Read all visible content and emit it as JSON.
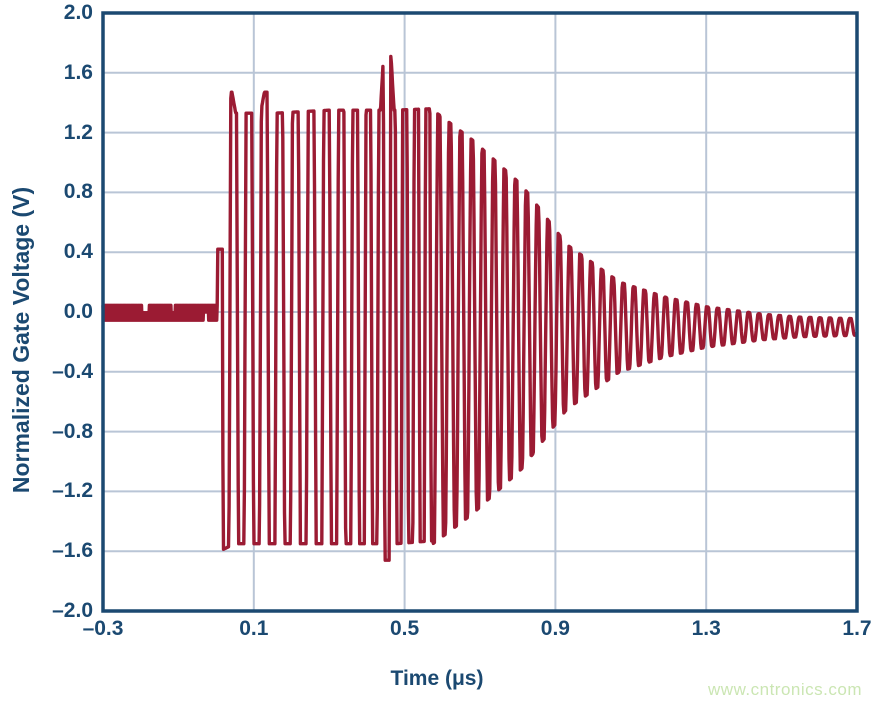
{
  "watermark": {
    "text": "www.cntronics.com",
    "color": "#cbe6b3"
  },
  "chart_data": {
    "type": "line",
    "title": "",
    "xlabel": "Time (μs)",
    "ylabel": "Normalized Gate Voltage (V)",
    "series_name": "normalized gate voltage waveform",
    "xlim": [
      -0.3,
      1.7
    ],
    "ylim": [
      -2.0,
      2.0
    ],
    "grid": true,
    "legend": false,
    "x_ticks": [
      {
        "value": -0.3,
        "label": "–0.3"
      },
      {
        "value": 0.1,
        "label": "0.1"
      },
      {
        "value": 0.5,
        "label": "0.5"
      },
      {
        "value": 0.9,
        "label": "0.9"
      },
      {
        "value": 1.3,
        "label": "1.3"
      },
      {
        "value": 1.7,
        "label": "1.7"
      }
    ],
    "y_ticks": [
      {
        "value": 2.0,
        "label": "2.0"
      },
      {
        "value": 1.6,
        "label": "1.6"
      },
      {
        "value": 1.2,
        "label": "1.2"
      },
      {
        "value": 0.8,
        "label": "0.8"
      },
      {
        "value": 0.4,
        "label": "0.4"
      },
      {
        "value": 0.0,
        "label": "0.0"
      },
      {
        "value": -0.4,
        "label": "–0.4"
      },
      {
        "value": -0.8,
        "label": "–0.8"
      },
      {
        "value": -1.2,
        "label": "–1.2"
      },
      {
        "value": -1.6,
        "label": "–1.6"
      },
      {
        "value": -2.0,
        "label": "–2.0"
      }
    ],
    "x_gridlines": [
      0.1,
      0.5,
      0.9,
      1.3
    ],
    "y_gridlines": [
      1.6,
      1.2,
      0.8,
      0.4,
      0.0,
      -0.4,
      -0.8,
      -1.2,
      -1.6
    ],
    "colors": {
      "trace": "#9b1b33",
      "axis": "#1b4971",
      "grid": "#b9c5d6",
      "background": "#ffffff"
    },
    "key_points": [
      {
        "t": 0.0,
        "v": 0.42,
        "note": "precursor step before burst"
      },
      {
        "t": 0.036,
        "v": 1.47,
        "note": "first burst peak"
      },
      {
        "t": 0.135,
        "v": 1.47,
        "note": "elevated peak"
      },
      {
        "t": 0.455,
        "v": 1.72,
        "note": "maximum peak"
      },
      {
        "t": 0.455,
        "v": -1.66,
        "note": "deepest valley"
      },
      {
        "t": 0.575,
        "v": 1.36,
        "note": "ring-down decay begins"
      },
      {
        "t": 1.7,
        "v": -0.09,
        "note": "settled level at right edge"
      }
    ],
    "waveform": {
      "dt": 0.0015,
      "baseline": {
        "t0": -0.3,
        "t1": 0.004,
        "upper": 0.045,
        "lower": -0.055,
        "notch_upper": -0.005,
        "notch_lower": 0.0,
        "notches": [
          {
            "t0": -0.195,
            "t1": -0.178,
            "cut": "top"
          },
          {
            "t0": -0.118,
            "t1": -0.108,
            "cut": "top"
          },
          {
            "t0": -0.032,
            "t1": -0.022,
            "cut": "bottom"
          }
        ]
      },
      "precursor": {
        "t0": 0.004,
        "t1": 0.017,
        "level": 0.42
      },
      "burst": {
        "t0": 0.017,
        "t1": 0.575,
        "center": -0.1,
        "clip": 2.6,
        "upper_env": [
          [
            0.017,
            1.47
          ],
          [
            0.042,
            1.47
          ],
          [
            0.052,
            1.33
          ],
          [
            0.118,
            1.33
          ],
          [
            0.128,
            1.47
          ],
          [
            0.148,
            1.47
          ],
          [
            0.158,
            1.33
          ],
          [
            0.3,
            1.35
          ],
          [
            0.436,
            1.35
          ],
          [
            0.444,
            1.71
          ],
          [
            0.464,
            1.71
          ],
          [
            0.472,
            1.35
          ],
          [
            0.575,
            1.36
          ]
        ],
        "lower_env": [
          [
            0.017,
            -1.59
          ],
          [
            0.05,
            -1.55
          ],
          [
            0.435,
            -1.55
          ],
          [
            0.445,
            -1.66
          ],
          [
            0.468,
            -1.66
          ],
          [
            0.476,
            -1.55
          ],
          [
            0.575,
            -1.53
          ]
        ]
      },
      "decay": {
        "t0": 0.575,
        "t1": 1.7,
        "center": -0.1,
        "clip": 1.25,
        "envelope": [
          [
            0.575,
            1.45
          ],
          [
            0.68,
            1.25
          ],
          [
            0.81,
            0.95
          ],
          [
            0.93,
            0.55
          ],
          [
            1.07,
            0.3
          ],
          [
            1.19,
            0.2
          ],
          [
            1.3,
            0.135
          ],
          [
            1.45,
            0.085
          ],
          [
            1.55,
            0.065
          ],
          [
            1.7,
            0.055
          ]
        ]
      },
      "period": [
        [
          0.017,
          0.04
        ],
        [
          0.25,
          0.042
        ],
        [
          0.45,
          0.032
        ],
        [
          0.575,
          0.0295
        ],
        [
          1.7,
          0.0265
        ]
      ]
    }
  }
}
